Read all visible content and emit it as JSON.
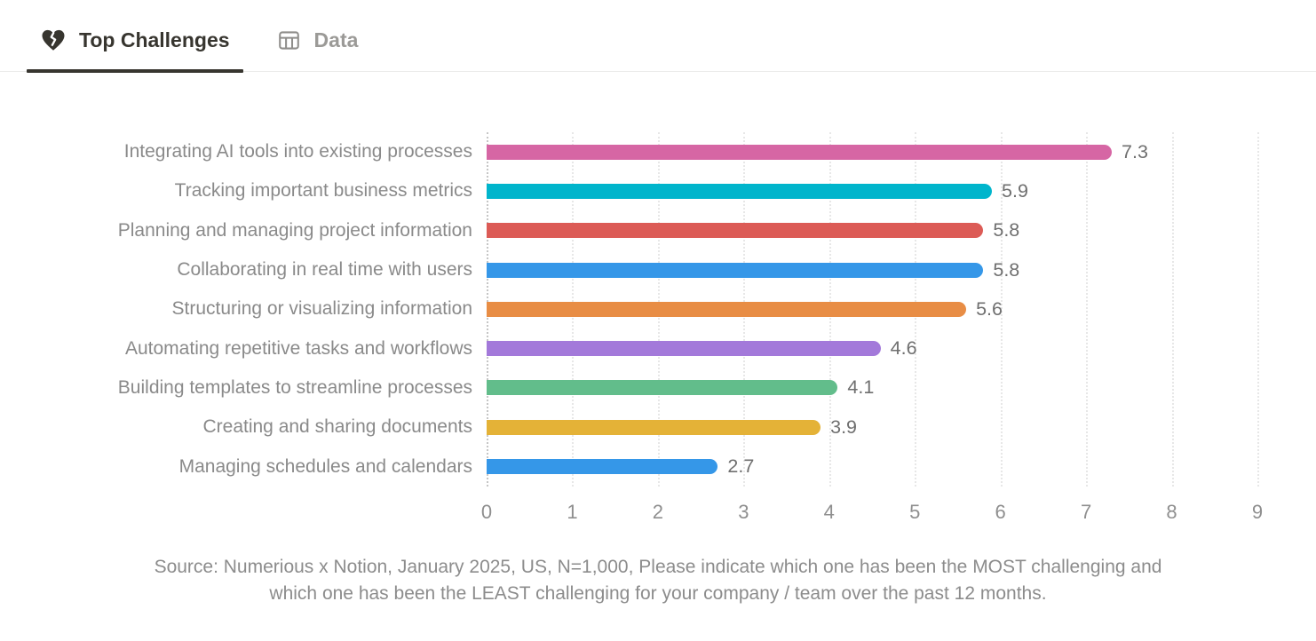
{
  "tabs": [
    {
      "label": "Top Challenges",
      "icon": "broken-heart-icon",
      "active": true
    },
    {
      "label": "Data",
      "icon": "table-icon",
      "active": false
    }
  ],
  "chart_data": {
    "type": "bar",
    "orientation": "horizontal",
    "title": "Top Challenges",
    "xlabel": "",
    "ylabel": "",
    "xlim": [
      0,
      9
    ],
    "x_ticks": [
      0,
      1,
      2,
      3,
      4,
      5,
      6,
      7,
      8,
      9
    ],
    "grid": "dotted-vertical",
    "value_labels_shown": true,
    "categories": [
      "Integrating AI tools into existing processes",
      "Tracking important business metrics",
      "Planning and managing project information",
      "Collaborating in real time with users",
      "Structuring or visualizing information",
      "Automating repetitive tasks and workflows",
      "Building templates to streamline processes",
      "Creating and sharing documents",
      "Managing schedules and calendars"
    ],
    "values": [
      7.3,
      5.9,
      5.8,
      5.8,
      5.6,
      4.6,
      4.1,
      3.9,
      2.7
    ],
    "bar_colors": [
      "#d666a4",
      "#00b5cc",
      "#dc5b56",
      "#3597e8",
      "#e88d45",
      "#a379da",
      "#62bd8b",
      "#e4b237",
      "#3597e8"
    ]
  },
  "source": {
    "line1": "Source: Numerious x Notion, January 2025, US, N=1,000, Please indicate which one has been the MOST challenging and",
    "line2": "which one has been the LEAST challenging for your company /  team over the past 12 months."
  },
  "colors": {
    "active_tab": "#37352f",
    "inactive_tab": "#9b9a97",
    "category_label": "#8a8a8a",
    "value_label": "#6f6f6f",
    "tick_label": "#8f8f8f",
    "gridline": "#e7e7e7",
    "axis_line": "#c6c6c6",
    "source_text": "#8c8c8c"
  }
}
